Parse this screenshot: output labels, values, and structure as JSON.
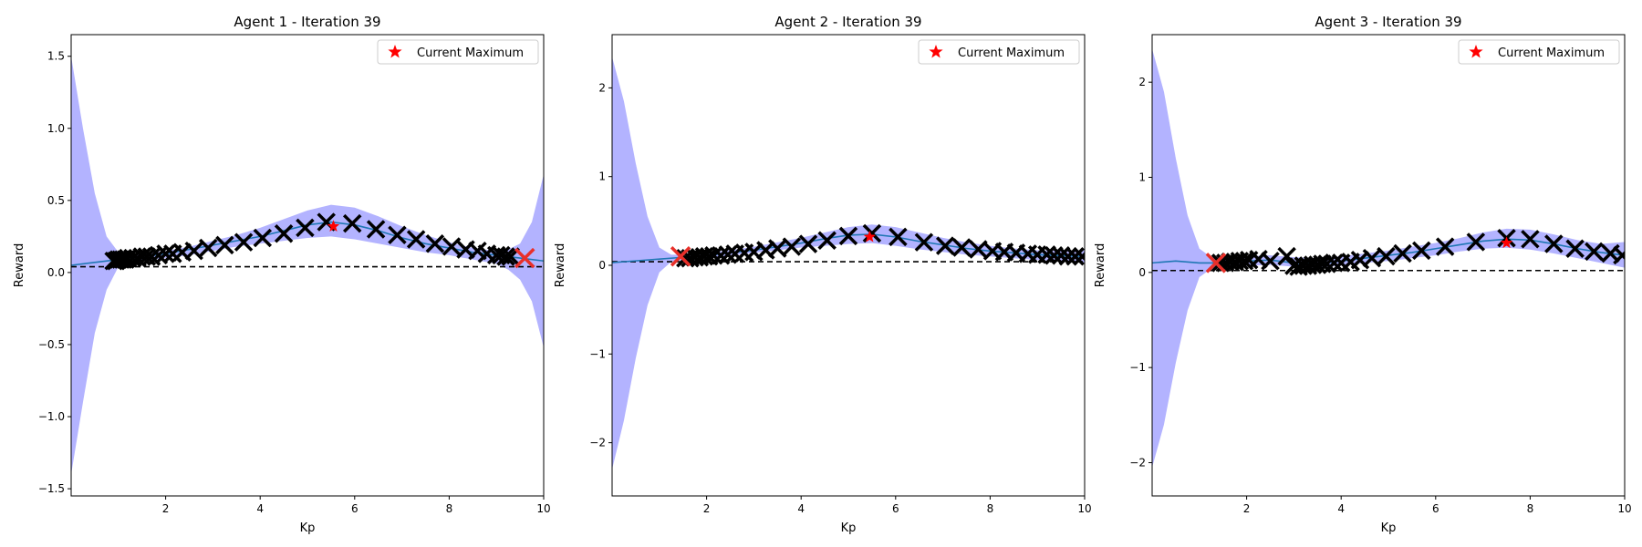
{
  "chart_data": [
    {
      "type": "line",
      "title": "Agent 1 - Iteration 39",
      "xlabel": "Kp",
      "ylabel": "Reward",
      "xlim": [
        0,
        10
      ],
      "ylim": [
        -1.55,
        1.65
      ],
      "xticks": [
        2,
        4,
        6,
        8,
        10
      ],
      "xtick_labels": [
        "2",
        "4",
        "6",
        "8",
        "10"
      ],
      "yticks": [
        -1.5,
        -1.0,
        -0.5,
        0.0,
        0.5,
        1.0,
        1.5
      ],
      "ytick_labels": [
        "−1.5",
        "−1.0",
        "−0.5",
        "0.0",
        "0.5",
        "1.0",
        "1.5"
      ],
      "legend": {
        "label": "Current Maximum",
        "position": "top-right"
      },
      "colors": {
        "mean": "#1f77b4",
        "band": "#b3b3ff",
        "star": "#ff0000",
        "markers": "#000000",
        "latest": "#e8302a"
      },
      "mean": {
        "x": [
          0,
          0.5,
          1,
          1.5,
          2,
          2.5,
          3,
          3.5,
          4,
          4.5,
          5,
          5.5,
          6,
          6.5,
          7,
          7.5,
          8,
          8.5,
          9,
          9.5,
          10
        ],
        "y": [
          0.05,
          0.07,
          0.09,
          0.11,
          0.13,
          0.16,
          0.19,
          0.22,
          0.25,
          0.29,
          0.33,
          0.35,
          0.33,
          0.29,
          0.24,
          0.2,
          0.17,
          0.14,
          0.12,
          0.1,
          0.08
        ]
      },
      "band": {
        "x": [
          0,
          0.25,
          0.5,
          0.75,
          1,
          1.25,
          1.5,
          2,
          2.5,
          3,
          3.5,
          4,
          4.5,
          5,
          5.5,
          6,
          6.5,
          7,
          7.5,
          8,
          8.5,
          9,
          9.25,
          9.5,
          9.75,
          10
        ],
        "upper": [
          1.5,
          1.0,
          0.55,
          0.25,
          0.14,
          0.12,
          0.13,
          0.15,
          0.18,
          0.22,
          0.26,
          0.31,
          0.37,
          0.43,
          0.47,
          0.45,
          0.39,
          0.32,
          0.26,
          0.21,
          0.17,
          0.15,
          0.16,
          0.2,
          0.35,
          0.68
        ],
        "lower": [
          -1.4,
          -0.9,
          -0.42,
          -0.12,
          0.04,
          0.06,
          0.08,
          0.1,
          0.12,
          0.15,
          0.18,
          0.2,
          0.22,
          0.24,
          0.25,
          0.23,
          0.2,
          0.17,
          0.14,
          0.12,
          0.09,
          0.06,
          0.02,
          -0.05,
          -0.2,
          -0.52
        ]
      },
      "baseline": 0.04,
      "samples": {
        "x": [
          0.9,
          0.95,
          1.0,
          1.05,
          1.1,
          1.15,
          1.2,
          1.3,
          1.4,
          1.5,
          1.6,
          1.7,
          1.85,
          2.0,
          2.15,
          2.35,
          2.6,
          2.9,
          3.25,
          3.65,
          4.05,
          4.5,
          4.95,
          5.4,
          5.95,
          6.45,
          6.9,
          7.3,
          7.7,
          8.05,
          8.35,
          8.6,
          8.8,
          9.0,
          9.1,
          9.2,
          9.3
        ],
        "y": [
          0.08,
          0.08,
          0.09,
          0.09,
          0.09,
          0.09,
          0.1,
          0.1,
          0.1,
          0.11,
          0.11,
          0.11,
          0.12,
          0.13,
          0.13,
          0.14,
          0.15,
          0.17,
          0.19,
          0.21,
          0.24,
          0.27,
          0.31,
          0.35,
          0.34,
          0.3,
          0.26,
          0.23,
          0.2,
          0.18,
          0.16,
          0.15,
          0.13,
          0.12,
          0.12,
          0.11,
          0.11
        ]
      },
      "latest_sample": {
        "x": 9.6,
        "y": 0.1
      },
      "current_maximum": {
        "x": 5.55,
        "y": 0.32
      }
    },
    {
      "type": "line",
      "title": "Agent 2 - Iteration 39",
      "xlabel": "Kp",
      "ylabel": "Reward",
      "xlim": [
        0,
        10
      ],
      "ylim": [
        -2.6,
        2.6
      ],
      "xticks": [
        2,
        4,
        6,
        8,
        10
      ],
      "xtick_labels": [
        "2",
        "4",
        "6",
        "8",
        "10"
      ],
      "yticks": [
        -2,
        -1,
        0,
        1,
        2
      ],
      "ytick_labels": [
        "−2",
        "−1",
        "0",
        "1",
        "2"
      ],
      "legend": {
        "label": "Current Maximum",
        "position": "top-right"
      },
      "colors": {
        "mean": "#1f77b4",
        "band": "#b3b3ff",
        "star": "#ff0000",
        "markers": "#000000",
        "latest": "#e8302a"
      },
      "mean": {
        "x": [
          0,
          0.5,
          1,
          1.5,
          2,
          2.5,
          3,
          3.5,
          4,
          4.5,
          5,
          5.5,
          6,
          6.5,
          7,
          7.5,
          8,
          8.5,
          9,
          9.5,
          10
        ],
        "y": [
          0.03,
          0.05,
          0.07,
          0.09,
          0.11,
          0.14,
          0.17,
          0.21,
          0.25,
          0.3,
          0.34,
          0.35,
          0.32,
          0.27,
          0.23,
          0.19,
          0.16,
          0.14,
          0.12,
          0.11,
          0.1
        ]
      },
      "band": {
        "x": [
          0,
          0.25,
          0.5,
          0.75,
          1,
          1.25,
          1.5,
          2,
          2.5,
          3,
          3.5,
          4,
          4.5,
          5,
          5.5,
          6,
          6.5,
          7,
          7.5,
          8,
          8.5,
          9,
          9.5,
          10
        ],
        "upper": [
          2.35,
          1.85,
          1.15,
          0.55,
          0.2,
          0.12,
          0.12,
          0.14,
          0.17,
          0.21,
          0.26,
          0.31,
          0.37,
          0.43,
          0.46,
          0.43,
          0.37,
          0.31,
          0.26,
          0.22,
          0.19,
          0.17,
          0.16,
          0.17
        ],
        "lower": [
          -2.3,
          -1.75,
          -1.05,
          -0.45,
          -0.08,
          0.04,
          0.06,
          0.08,
          0.11,
          0.14,
          0.17,
          0.2,
          0.22,
          0.24,
          0.25,
          0.22,
          0.18,
          0.15,
          0.12,
          0.1,
          0.08,
          0.06,
          0.05,
          0.03
        ]
      },
      "baseline": 0.04,
      "samples": {
        "x": [
          1.55,
          1.65,
          1.75,
          1.85,
          1.95,
          2.05,
          2.15,
          2.3,
          2.45,
          2.6,
          2.8,
          3.0,
          3.25,
          3.5,
          3.8,
          4.15,
          4.55,
          5.0,
          5.5,
          6.05,
          6.6,
          7.05,
          7.4,
          7.75,
          8.05,
          8.3,
          8.55,
          8.8,
          9.0,
          9.2,
          9.35,
          9.5,
          9.65,
          9.8,
          9.95
        ],
        "y": [
          0.08,
          0.08,
          0.09,
          0.09,
          0.1,
          0.1,
          0.11,
          0.11,
          0.12,
          0.13,
          0.14,
          0.15,
          0.17,
          0.19,
          0.21,
          0.24,
          0.28,
          0.33,
          0.36,
          0.32,
          0.26,
          0.22,
          0.2,
          0.18,
          0.16,
          0.15,
          0.14,
          0.13,
          0.12,
          0.12,
          0.11,
          0.11,
          0.1,
          0.1,
          0.1
        ]
      },
      "latest_sample": {
        "x": 1.45,
        "y": 0.1
      },
      "current_maximum": {
        "x": 5.45,
        "y": 0.32
      }
    },
    {
      "type": "line",
      "title": "Agent 3 - Iteration 39",
      "xlabel": "Kp",
      "ylabel": "Reward",
      "xlim": [
        0,
        10
      ],
      "ylim": [
        -2.35,
        2.5
      ],
      "xticks": [
        2,
        4,
        6,
        8,
        10
      ],
      "xtick_labels": [
        "2",
        "4",
        "6",
        "8",
        "10"
      ],
      "yticks": [
        -2,
        -1,
        0,
        1,
        2
      ],
      "ytick_labels": [
        "−2",
        "−1",
        "0",
        "1",
        "2"
      ],
      "legend": {
        "label": "Current Maximum",
        "position": "top-right"
      },
      "colors": {
        "mean": "#1f77b4",
        "band": "#b3b3ff",
        "star": "#ff0000",
        "markers": "#000000",
        "latest": "#e8302a"
      },
      "mean": {
        "x": [
          0,
          0.5,
          1,
          1.5,
          2,
          2.5,
          3,
          3.5,
          4,
          4.5,
          5,
          5.5,
          6,
          6.5,
          7,
          7.5,
          8,
          8.5,
          9,
          9.5,
          10
        ],
        "y": [
          0.1,
          0.12,
          0.1,
          0.1,
          0.12,
          0.13,
          0.1,
          0.09,
          0.12,
          0.15,
          0.18,
          0.21,
          0.25,
          0.29,
          0.33,
          0.35,
          0.34,
          0.3,
          0.25,
          0.21,
          0.18
        ]
      },
      "band": {
        "x": [
          0,
          0.25,
          0.5,
          0.75,
          1,
          1.25,
          1.5,
          2,
          2.5,
          3,
          3.5,
          4,
          4.5,
          5,
          5.5,
          6,
          6.5,
          7,
          7.5,
          8,
          8.5,
          9,
          9.5,
          10
        ],
        "upper": [
          2.35,
          1.9,
          1.2,
          0.6,
          0.25,
          0.16,
          0.16,
          0.17,
          0.18,
          0.16,
          0.15,
          0.17,
          0.2,
          0.23,
          0.27,
          0.31,
          0.36,
          0.42,
          0.46,
          0.45,
          0.4,
          0.34,
          0.3,
          0.32
        ],
        "lower": [
          -2.05,
          -1.6,
          -0.95,
          -0.4,
          -0.05,
          0.04,
          0.06,
          0.07,
          0.08,
          0.06,
          0.05,
          0.07,
          0.1,
          0.12,
          0.15,
          0.18,
          0.22,
          0.25,
          0.26,
          0.24,
          0.2,
          0.15,
          0.1,
          0.05
        ]
      },
      "baseline": 0.02,
      "samples": {
        "x": [
          1.45,
          1.55,
          1.65,
          1.75,
          1.85,
          1.95,
          2.05,
          2.25,
          2.5,
          2.85,
          3.0,
          3.1,
          3.2,
          3.3,
          3.4,
          3.5,
          3.6,
          3.7,
          3.85,
          4.0,
          4.2,
          4.4,
          4.65,
          4.95,
          5.3,
          5.7,
          6.2,
          6.85,
          7.5,
          8.0,
          8.5,
          8.95,
          9.35,
          9.7,
          9.95
        ],
        "y": [
          0.1,
          0.1,
          0.11,
          0.11,
          0.12,
          0.12,
          0.13,
          0.14,
          0.12,
          0.17,
          0.07,
          0.06,
          0.07,
          0.07,
          0.08,
          0.08,
          0.09,
          0.09,
          0.1,
          0.1,
          0.11,
          0.13,
          0.15,
          0.17,
          0.2,
          0.23,
          0.27,
          0.32,
          0.36,
          0.35,
          0.3,
          0.25,
          0.22,
          0.2,
          0.18
        ]
      },
      "latest_sample": {
        "x": 1.35,
        "y": 0.1
      },
      "current_maximum": {
        "x": 7.5,
        "y": 0.31
      }
    }
  ]
}
